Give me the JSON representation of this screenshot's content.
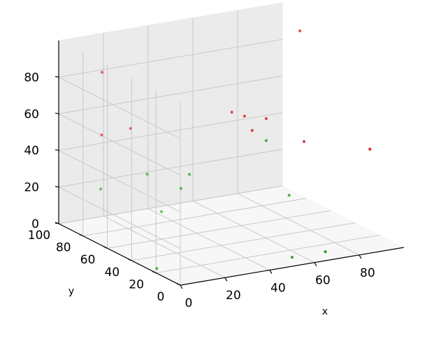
{
  "chart_data": {
    "type": "scatter",
    "projection": "3d",
    "title": "",
    "xlabel": "x",
    "ylabel": "y",
    "zlabel": "",
    "xlim": [
      0,
      100
    ],
    "ylim": [
      0,
      100
    ],
    "zlim": [
      0,
      100
    ],
    "xticks": [
      "0",
      "20",
      "40",
      "60",
      "80"
    ],
    "yticks": [
      "0",
      "20",
      "40",
      "60",
      "80",
      "100"
    ],
    "zticks": [
      "0",
      "20",
      "40",
      "60",
      "80"
    ],
    "grid": true,
    "series": [
      {
        "color": "#d62728",
        "points": [
          {
            "x": 2,
            "y": 68,
            "z": 93
          },
          {
            "x": 4,
            "y": 72,
            "z": 57
          },
          {
            "x": 47,
            "y": 44,
            "z": 70
          },
          {
            "x": 51,
            "y": 41,
            "z": 68
          },
          {
            "x": 49,
            "y": 31,
            "z": 64
          },
          {
            "x": 18,
            "y": 74,
            "z": 57
          },
          {
            "x": 76,
            "y": 38,
            "z": 50
          },
          {
            "x": 97,
            "y": 80,
            "z": 92
          },
          {
            "x": 87,
            "y": 4,
            "z": 55
          },
          {
            "x": 64,
            "y": 47,
            "z": 62
          }
        ]
      },
      {
        "color": "#2ca02c",
        "points": [
          {
            "x": 20,
            "y": 64,
            "z": 35
          },
          {
            "x": 34,
            "y": 55,
            "z": 35
          },
          {
            "x": 3,
            "y": 71,
            "z": 28
          },
          {
            "x": 34,
            "y": 62,
            "z": 25
          },
          {
            "x": 64,
            "y": 47,
            "z": 50
          },
          {
            "x": 66,
            "y": 2,
            "z": 4
          },
          {
            "x": 40,
            "y": 89,
            "z": 2
          },
          {
            "x": 90,
            "y": 76,
            "z": 5
          },
          {
            "x": 56,
            "y": 11,
            "z": 0
          },
          {
            "x": 2,
            "y": 23,
            "z": 1
          }
        ]
      }
    ]
  }
}
